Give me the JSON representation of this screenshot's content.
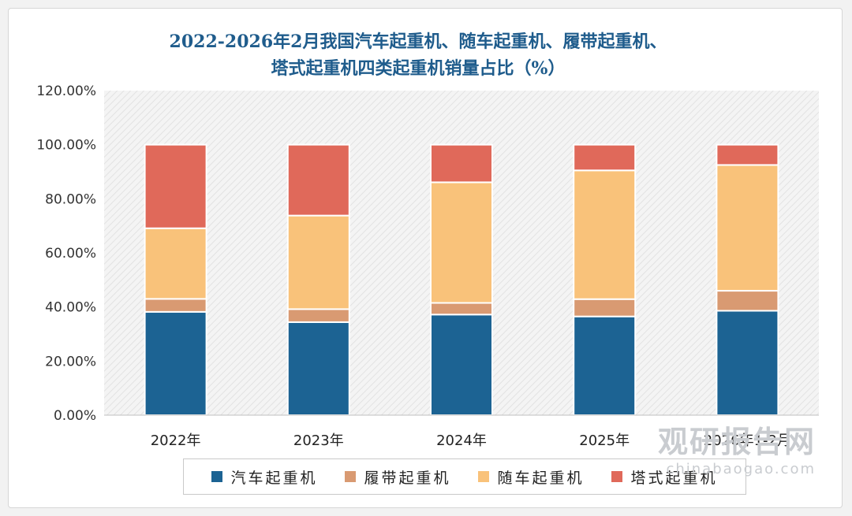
{
  "watermark": {
    "text_cn": "观研报告网",
    "text_en": "chinabaogao.com"
  },
  "colors": {
    "汽车起重机": "#1c6393",
    "履带起重机": "#d99a72",
    "随车起重机": "#f9c27a",
    "塔式起重机": "#e0695a"
  },
  "chart_data": {
    "type": "bar",
    "stacked": true,
    "title": "2022-2026年2月我国汽车起重机、随车起重机、履带起重机、塔式起重机四类起重机销量占比（%）",
    "title_lines": [
      "2022-2026年2月我国汽车起重机、随车起重机、履带起重机、",
      "塔式起重机四类起重机销量占比（%）"
    ],
    "categories": [
      "2022年",
      "2023年",
      "2024年",
      "2025年",
      "2026年1-2月"
    ],
    "ylim": [
      0,
      120
    ],
    "yticks": [
      "0.00%",
      "20.00%",
      "40.00%",
      "60.00%",
      "80.00%",
      "100.00%",
      "120.00%"
    ],
    "ytick_values": [
      0,
      20,
      40,
      60,
      80,
      100,
      120
    ],
    "legend_position": "bottom",
    "series": [
      {
        "name": "汽车起重机",
        "values": [
          38.2,
          34.4,
          37.2,
          36.5,
          38.6
        ]
      },
      {
        "name": "履带起重机",
        "values": [
          4.8,
          4.8,
          4.3,
          6.4,
          7.4
        ]
      },
      {
        "name": "随车起重机",
        "values": [
          26.1,
          34.6,
          44.6,
          47.6,
          46.5
        ]
      },
      {
        "name": "塔式起重机",
        "values": [
          30.9,
          26.2,
          13.9,
          9.5,
          7.5
        ]
      }
    ]
  }
}
